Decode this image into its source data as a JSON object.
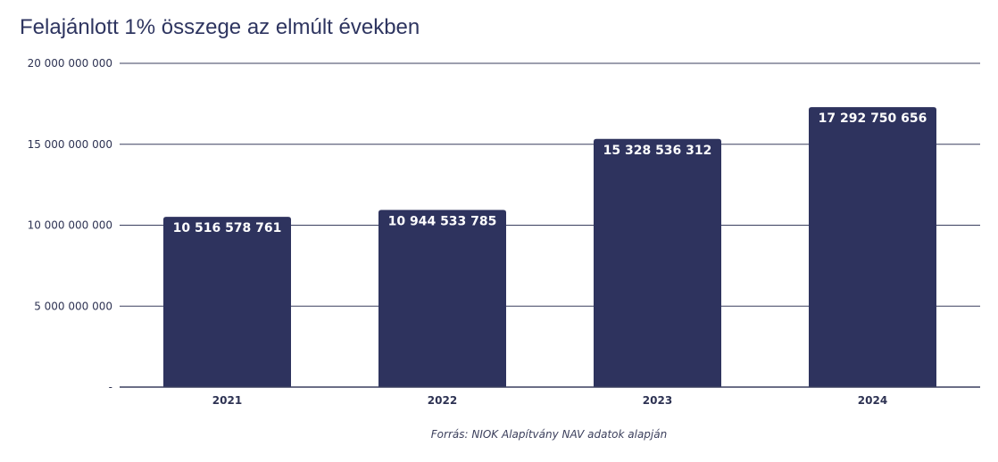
{
  "chart_data": {
    "type": "bar",
    "title": "Felajánlott 1% összege az elmúlt években",
    "categories": [
      "2021",
      "2022",
      "2023",
      "2024"
    ],
    "values": [
      10516578761,
      10944533785,
      15328536312,
      17292750656
    ],
    "data_labels": [
      "10 516 578 761",
      "10 944 533 785",
      "15 328 536 312",
      "17 292 750 656"
    ],
    "ylim": [
      0,
      20000000000
    ],
    "yticks": [
      {
        "value": 0,
        "label": "-"
      },
      {
        "value": 5000000000,
        "label": "5 000 000 000"
      },
      {
        "value": 10000000000,
        "label": "10 000 000 000"
      },
      {
        "value": 15000000000,
        "label": "15 000 000 000"
      },
      {
        "value": 20000000000,
        "label": "20 000 000 000"
      }
    ],
    "grid": true,
    "bar_color": "#2e335e",
    "source": "Forrás: NIOK Alapítvány NAV adatok alapján"
  }
}
